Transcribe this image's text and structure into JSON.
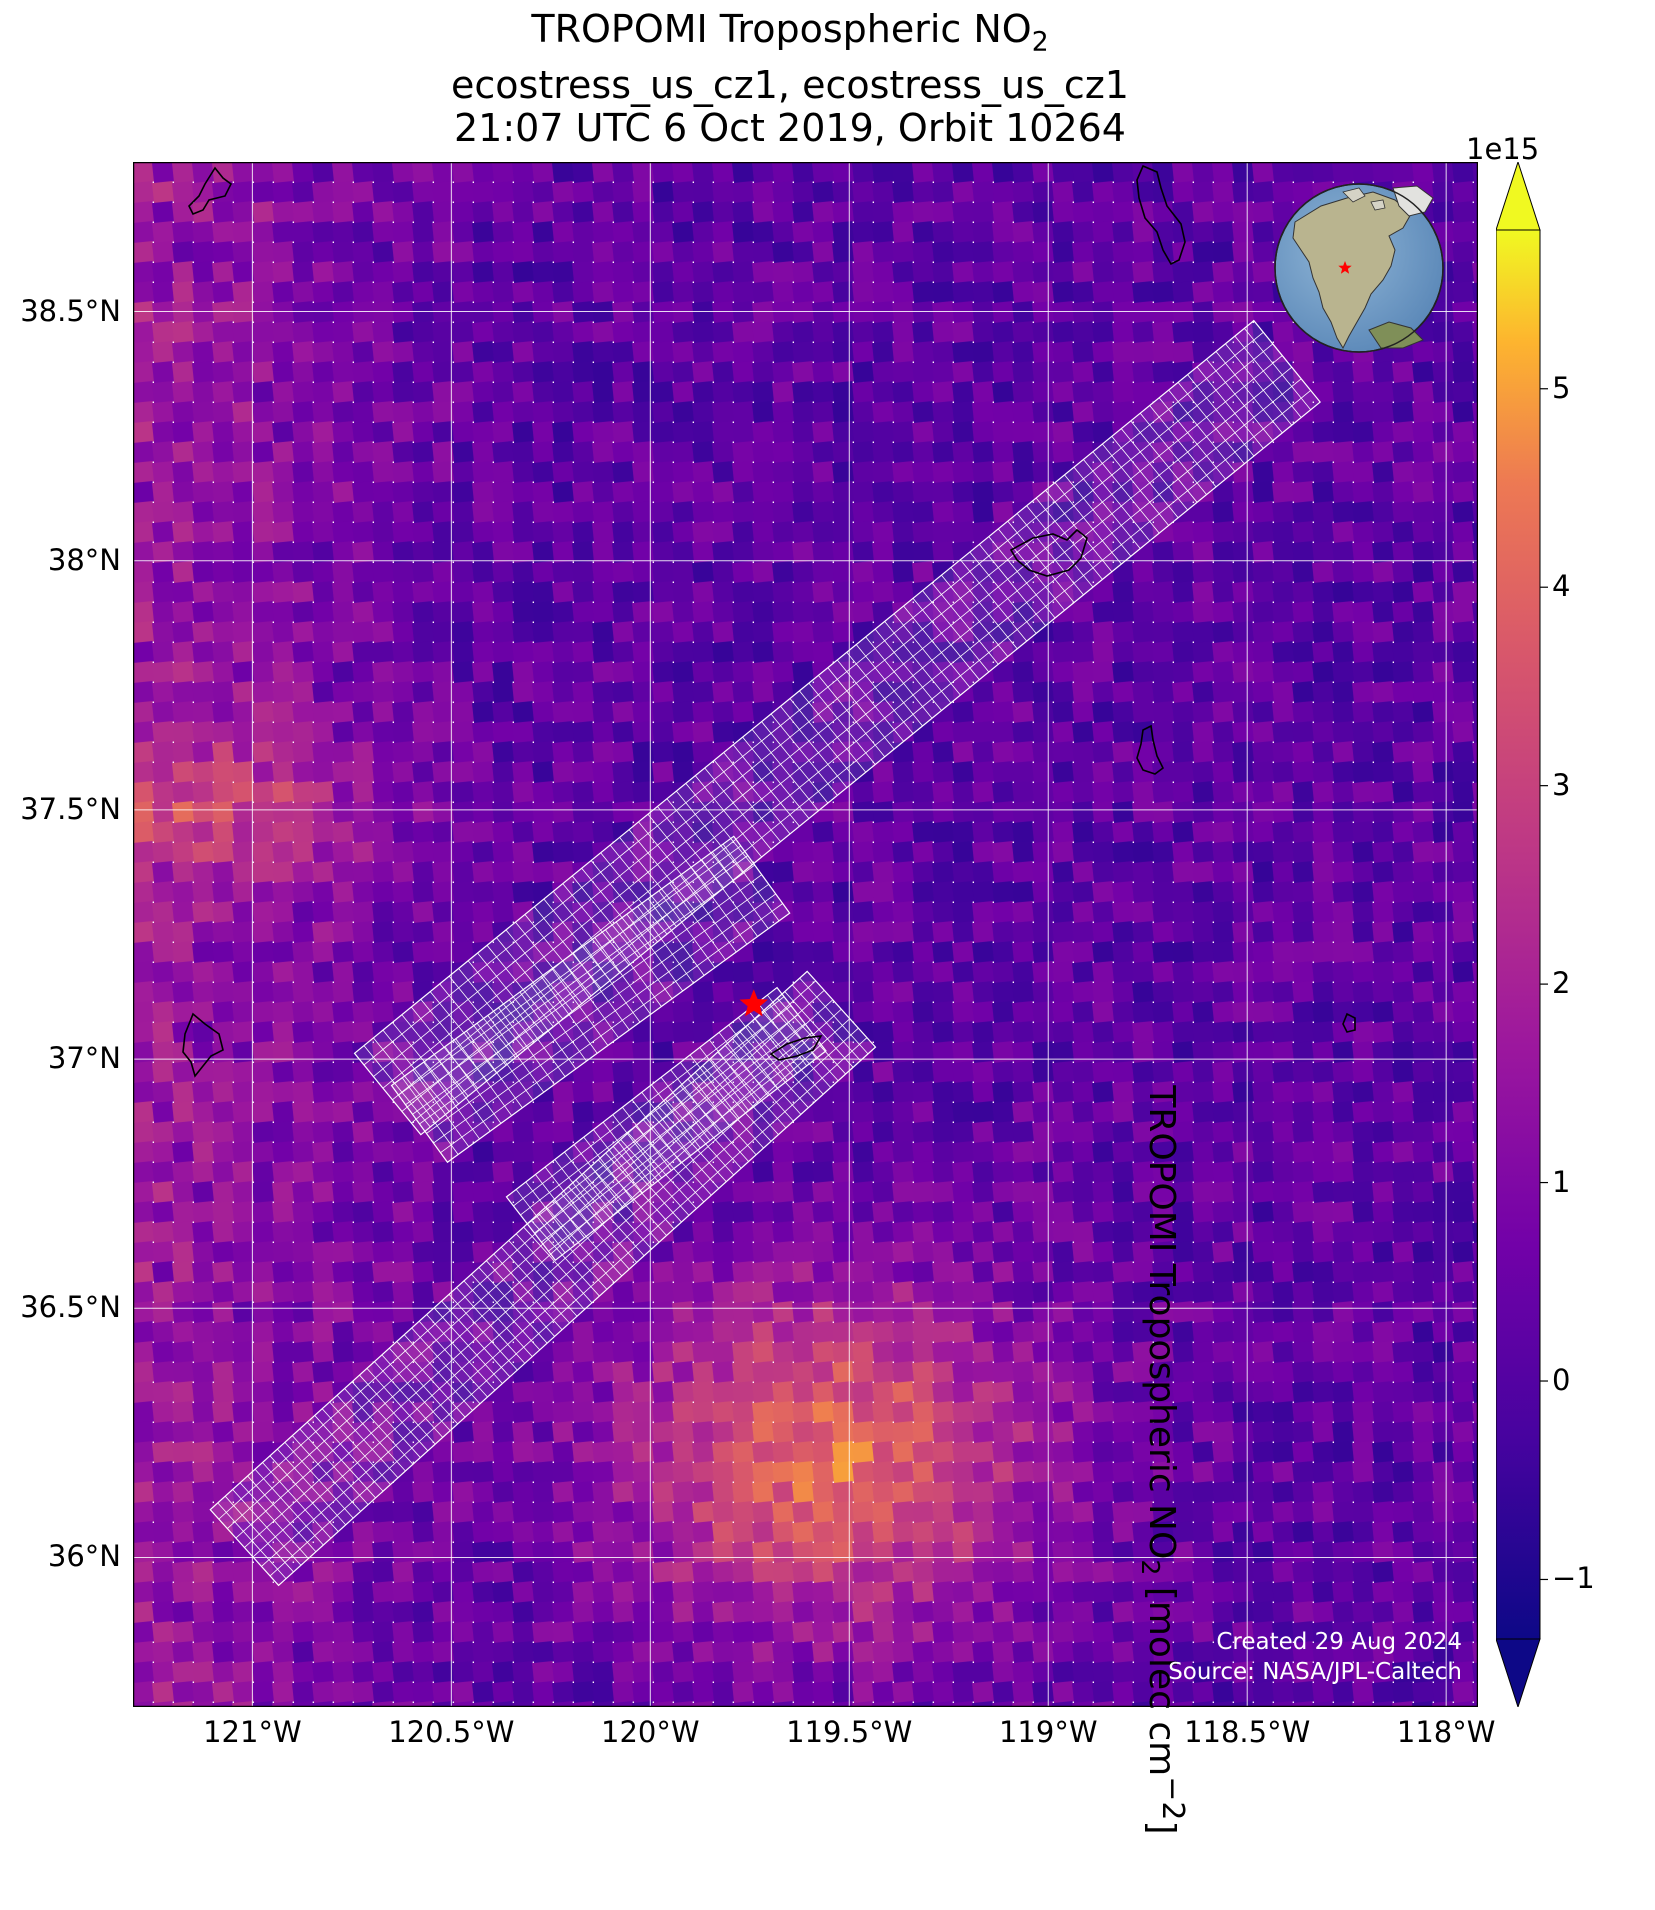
{
  "title": {
    "line1_prefix": "TROPOMI Tropospheric NO",
    "line1_sub": "2",
    "line2": "ecostress_us_cz1, ecostress_us_cz1",
    "line3": "21:07 UTC 6 Oct 2019, Orbit 10264"
  },
  "map": {
    "lon_range": [
      -121.3,
      -117.92
    ],
    "lat_range": [
      35.7,
      38.8
    ],
    "gridlines": true,
    "lat_labels": [
      "38.5°N",
      "38°N",
      "37.5°N",
      "37°N",
      "36.5°N",
      "36°N"
    ],
    "lat_values": [
      38.5,
      38.0,
      37.5,
      37.0,
      36.5,
      36.0
    ],
    "lon_labels": [
      "121°W",
      "120.5°W",
      "120°W",
      "119.5°W",
      "119°W",
      "118.5°W",
      "118°W"
    ],
    "lon_values": [
      -121.0,
      -120.5,
      -120.0,
      -119.5,
      -119.0,
      -118.5,
      -118.0
    ],
    "target_marker": {
      "lon": -119.74,
      "lat": 37.11,
      "symbol": "red-star"
    },
    "hotspot": {
      "lon": -119.55,
      "lat": 36.2
    },
    "overlay_color": "#ffffff",
    "colormap": "plasma",
    "inset_globe": {
      "center_region": "North America",
      "marker": "red-star"
    }
  },
  "colorbar": {
    "exponent": "1e15",
    "label_prefix": "TROPOMI Tropospheric NO",
    "label_sub": "2",
    "label_suffix": " [molec cm",
    "label_sup": "−2",
    "label_end": "]",
    "range": [
      -1.3,
      5.8
    ],
    "ticks": [
      "−1",
      "0",
      "1",
      "2",
      "3",
      "4",
      "5"
    ],
    "tick_values": [
      -1,
      0,
      1,
      2,
      3,
      4,
      5
    ],
    "extend": "both"
  },
  "credits": {
    "line1": "Created 29 Aug 2024",
    "line2": "Source: NASA/JPL-Caltech"
  }
}
